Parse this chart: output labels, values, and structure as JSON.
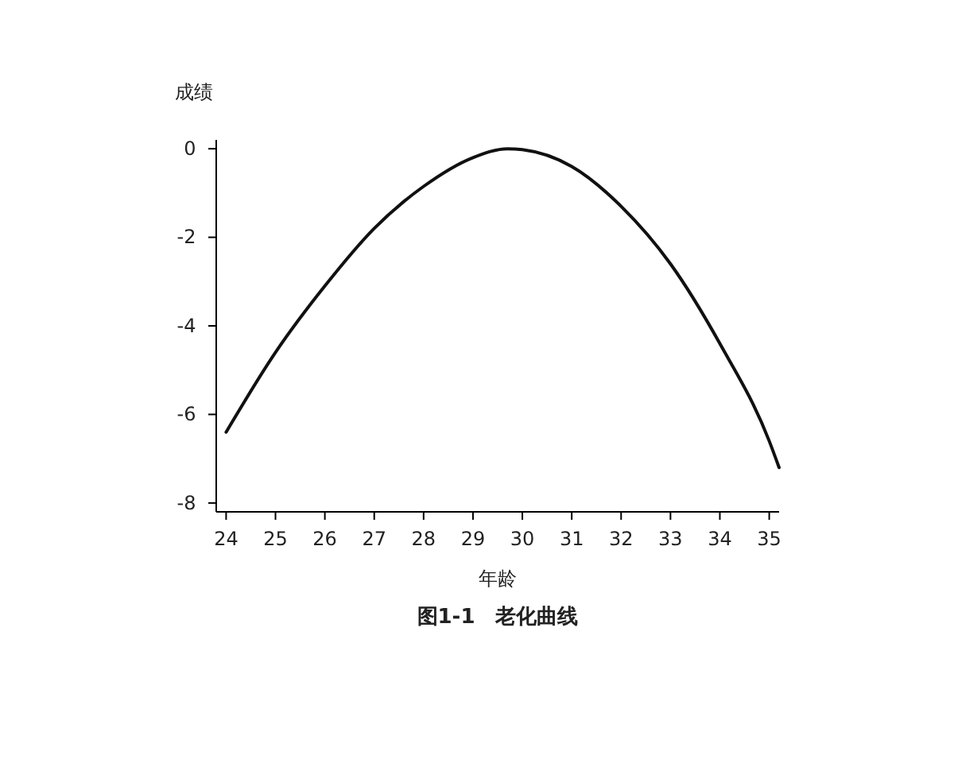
{
  "chart_data": {
    "type": "line",
    "title": "图1-1　老化曲线",
    "xlabel": "年龄",
    "ylabel": "成绩",
    "x": [
      24,
      25,
      26,
      27,
      28,
      29,
      29.7,
      30,
      31,
      32,
      33,
      34,
      35,
      35.2
    ],
    "series": [
      {
        "color": "#111111",
        "values": [
          -6.4,
          -4.6,
          -3.1,
          -1.8,
          -0.85,
          -0.2,
          0,
          -0.02,
          -0.4,
          -1.3,
          -2.6,
          -4.4,
          -6.6,
          -7.2
        ]
      }
    ],
    "xlim": [
      23.8,
      35.2
    ],
    "xticks": [
      24,
      25,
      26,
      27,
      28,
      29,
      30,
      31,
      32,
      33,
      34,
      35
    ],
    "ylim": [
      -8.2,
      0.2
    ],
    "yticks": [
      -8,
      -6,
      -4,
      -2,
      0
    ],
    "grid": false,
    "marker": "none",
    "line_style": "solid"
  }
}
